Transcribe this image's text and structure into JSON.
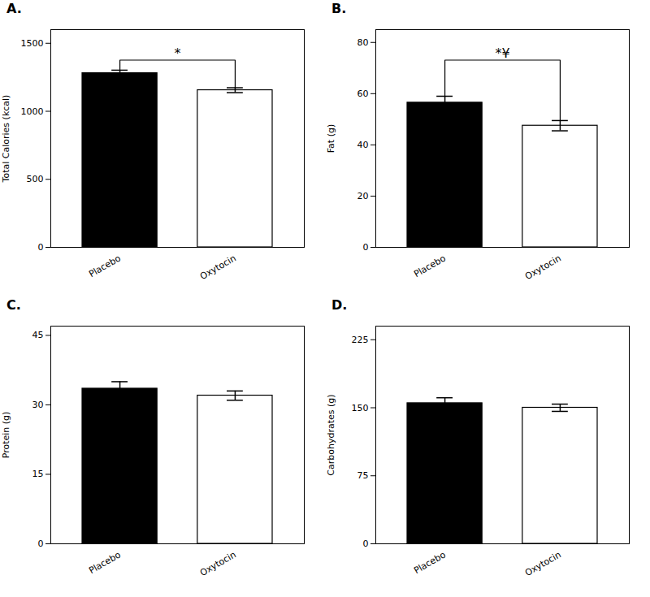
{
  "chart_data": [
    {
      "type": "bar",
      "title": "A.",
      "ylabel": "Total Calories (kcal)",
      "categories": [
        "Placebo",
        "Oxytocin"
      ],
      "values": [
        1280,
        1155
      ],
      "errors": [
        22,
        18
      ],
      "colors": [
        "#000000",
        "#ffffff"
      ],
      "ylim": [
        0,
        1600
      ],
      "yticks": [
        0,
        500,
        1000,
        1500
      ],
      "grid": false,
      "annotations": [
        "*"
      ]
    },
    {
      "type": "bar",
      "title": "B.",
      "ylabel": "Fat (g)",
      "categories": [
        "Placebo",
        "Oxytocin"
      ],
      "values": [
        56.5,
        47.5
      ],
      "errors": [
        2.5,
        2.0
      ],
      "colors": [
        "#000000",
        "#ffffff"
      ],
      "ylim": [
        0,
        85
      ],
      "yticks": [
        0,
        20,
        40,
        60,
        80
      ],
      "grid": false,
      "annotations": [
        "*¥"
      ]
    },
    {
      "type": "bar",
      "title": "C.",
      "ylabel": "Protein (g)",
      "categories": [
        "Placebo",
        "Oxytocin"
      ],
      "values": [
        33.5,
        32.0
      ],
      "errors": [
        1.5,
        1.0
      ],
      "colors": [
        "#000000",
        "#ffffff"
      ],
      "ylim": [
        0,
        47
      ],
      "yticks": [
        0,
        15,
        30,
        45
      ],
      "grid": false
    },
    {
      "type": "bar",
      "title": "D.",
      "ylabel": "Carbohydrates (g)",
      "categories": [
        "Placebo",
        "Oxytocin"
      ],
      "values": [
        155,
        150
      ],
      "errors": [
        6,
        4
      ],
      "colors": [
        "#000000",
        "#ffffff"
      ],
      "ylim": [
        0,
        240
      ],
      "yticks": [
        0,
        75,
        150,
        225
      ],
      "grid": false
    }
  ]
}
